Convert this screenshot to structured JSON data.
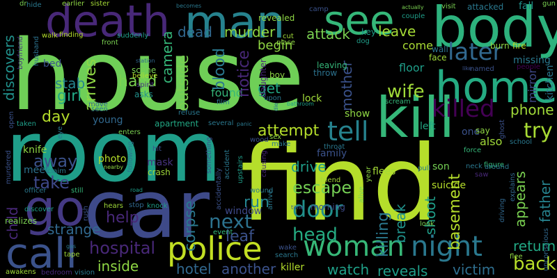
{
  "wordcloud": {
    "background": "#000000",
    "words": [
      {
        "text": "house",
        "color": "#6fcf57"
      },
      {
        "text": "find",
        "color": "#b5de2b"
      },
      {
        "text": "room",
        "color": "#1f9e89"
      },
      {
        "text": "car",
        "color": "#3e4a89"
      },
      {
        "text": "kill",
        "color": "#35b779"
      },
      {
        "text": "body",
        "color": "#2db27d"
      },
      {
        "text": "death",
        "color": "#482878"
      },
      {
        "text": "man",
        "color": "#26828e"
      },
      {
        "text": "see",
        "color": "#35b779"
      },
      {
        "text": "home",
        "color": "#25ab82"
      },
      {
        "text": "go",
        "color": "#443983"
      },
      {
        "text": "call",
        "color": "#3b528b"
      },
      {
        "text": "police",
        "color": "#c2df23"
      },
      {
        "text": "woman",
        "color": "#37b878"
      },
      {
        "text": "night",
        "color": "#2a788e"
      },
      {
        "text": "tell",
        "color": "#26828e"
      },
      {
        "text": "killed",
        "color": "#440154"
      },
      {
        "text": "later",
        "color": "#31688e"
      },
      {
        "text": "door",
        "color": "#21918c"
      },
      {
        "text": "next",
        "color": "#2c728e"
      },
      {
        "text": "phone",
        "color": "#a0da39"
      },
      {
        "text": "try",
        "color": "#a8db34"
      },
      {
        "text": "attempt",
        "color": "#b5de2b"
      },
      {
        "text": "hospital",
        "color": "#482878"
      },
      {
        "text": "escape",
        "color": "#75d054"
      },
      {
        "text": "drive",
        "color": "#1f9e89"
      },
      {
        "text": "back",
        "color": "#b8de29"
      },
      {
        "text": "return",
        "color": "#22a884"
      },
      {
        "text": "head",
        "color": "#25ab82"
      },
      {
        "text": "hand",
        "color": "#7ad151"
      },
      {
        "text": "wife",
        "color": "#a0da39"
      },
      {
        "text": "attack",
        "color": "#7ad151"
      },
      {
        "text": "leave",
        "color": "#a5db36"
      },
      {
        "text": "dead",
        "color": "#31688e"
      },
      {
        "text": "murder",
        "color": "#8fd744"
      },
      {
        "text": "begin",
        "color": "#90d743"
      },
      {
        "text": "girl",
        "color": "#22a884"
      },
      {
        "text": "stab",
        "color": "#25848e"
      },
      {
        "text": "day",
        "color": "#b5de2b"
      },
      {
        "text": "away",
        "color": "#3b528b"
      },
      {
        "text": "take",
        "color": "#3e4989"
      },
      {
        "text": "help",
        "color": "#482878"
      },
      {
        "text": "leaf",
        "color": "#3b528b"
      },
      {
        "text": "run",
        "color": "#25848e"
      },
      {
        "text": "get",
        "color": "#22a884"
      },
      {
        "text": "found",
        "color": "#35b779"
      },
      {
        "text": "hotel",
        "color": "#31688e"
      },
      {
        "text": "another",
        "color": "#3b528b"
      },
      {
        "text": "inside",
        "color": "#8fd744"
      },
      {
        "text": "watch",
        "color": "#1fa088"
      },
      {
        "text": "reveals",
        "color": "#1f9e89"
      },
      {
        "text": "victim",
        "color": "#2e6e8e"
      },
      {
        "text": "strange",
        "color": "#31688e"
      },
      {
        "text": "killing",
        "color": "#2a788e"
      },
      {
        "text": "shoot",
        "color": "#1f9e89"
      },
      {
        "text": "break",
        "color": "#20928c"
      },
      {
        "text": "basement",
        "color": "#b5de2b"
      },
      {
        "text": "appears",
        "color": "#7ad151"
      },
      {
        "text": "father",
        "color": "#26828e"
      },
      {
        "text": "mother",
        "color": "#3b528b"
      },
      {
        "text": "blood",
        "color": "#2a788e"
      },
      {
        "text": "notice",
        "color": "#482878"
      },
      {
        "text": "outside",
        "color": "#7ad151"
      },
      {
        "text": "camera",
        "color": "#35b779"
      },
      {
        "text": "discovers",
        "color": "#21918c"
      },
      {
        "text": "child",
        "color": "#482878"
      },
      {
        "text": "corpse",
        "color": "#2a788e"
      },
      {
        "text": "arrives",
        "color": "#8fd744"
      },
      {
        "text": "floor",
        "color": "#1f9e89"
      },
      {
        "text": "come",
        "color": "#a8db34"
      },
      {
        "text": "mirror",
        "color": "#3e4989"
      },
      {
        "text": "window",
        "color": "#3e4989"
      },
      {
        "text": "missing",
        "color": "#2a788e"
      },
      {
        "text": "kitchen",
        "color": "#2a788e"
      },
      {
        "text": "lock",
        "color": "#a0da39"
      },
      {
        "text": "son",
        "color": "#75d054"
      },
      {
        "text": "also",
        "color": "#a0da39"
      },
      {
        "text": "one",
        "color": "#3b528b"
      },
      {
        "text": "left",
        "color": "#22a884"
      },
      {
        "text": "show",
        "color": "#8fd744"
      },
      {
        "text": "family",
        "color": "#3b528b"
      },
      {
        "text": "flees",
        "color": "#a5db36"
      },
      {
        "text": "suicide",
        "color": "#b5de2b"
      },
      {
        "text": "killer",
        "color": "#b5de2b"
      },
      {
        "text": "morning",
        "color": "#3e4a89"
      },
      {
        "text": "photo",
        "color": "#b5de2b"
      },
      {
        "text": "mask",
        "color": "#46337e"
      },
      {
        "text": "crash",
        "color": "#a0da39"
      },
      {
        "text": "knife",
        "color": "#8fd744"
      },
      {
        "text": "meet",
        "color": "#2c728e"
      },
      {
        "text": "young",
        "color": "#31688e"
      },
      {
        "text": "apartment",
        "color": "#22a884"
      },
      {
        "text": "scene",
        "color": "#7ad151"
      },
      {
        "text": "asks",
        "color": "#21918c"
      },
      {
        "text": "leaving",
        "color": "#35b779"
      },
      {
        "text": "throw",
        "color": "#2c728e"
      },
      {
        "text": "wall",
        "color": "#2c728e"
      },
      {
        "text": "face",
        "color": "#a0da39"
      },
      {
        "text": "burn",
        "color": "#8fd744"
      },
      {
        "text": "fire",
        "color": "#b5de2b"
      },
      {
        "text": "visit",
        "color": "#7ad151"
      },
      {
        "text": "attacked",
        "color": "#2a788e"
      },
      {
        "text": "fall",
        "color": "#21918c"
      },
      {
        "text": "gun",
        "color": "#7ad151"
      },
      {
        "text": "key",
        "color": "#1f9e89"
      },
      {
        "text": "cut",
        "color": "#a0da39"
      },
      {
        "text": "place",
        "color": "#8fd744"
      },
      {
        "text": "dog",
        "color": "#1f9e89"
      },
      {
        "text": "revealed",
        "color": "#8fd744"
      },
      {
        "text": "camp",
        "color": "#3b528b"
      },
      {
        "text": "couple",
        "color": "#1f9e89"
      },
      {
        "text": "actually",
        "color": "#7ad151"
      },
      {
        "text": "dr",
        "color": "#7ad151"
      },
      {
        "text": "hide",
        "color": "#2a788e"
      },
      {
        "text": "earlier",
        "color": "#8fd744"
      },
      {
        "text": "sister",
        "color": "#a5db36"
      },
      {
        "text": "becomes",
        "color": "#2a788e"
      },
      {
        "text": "walk",
        "color": "#b5de2b"
      },
      {
        "text": "finding",
        "color": "#b5de2b"
      },
      {
        "text": "suddenly",
        "color": "#1f9e89"
      },
      {
        "text": "front",
        "color": "#7ad151"
      },
      {
        "text": "station",
        "color": "#31688e"
      },
      {
        "text": "believe",
        "color": "#b5de2b"
      },
      {
        "text": "spirit",
        "color": "#46337e"
      },
      {
        "text": "boyfriend",
        "color": "#46337e"
      },
      {
        "text": "husband",
        "color": "#2c728e"
      },
      {
        "text": "eye",
        "color": "#2a788e"
      },
      {
        "text": "daughter",
        "color": "#482878"
      },
      {
        "text": "boy",
        "color": "#8fd744"
      },
      {
        "text": "upon",
        "color": "#2a788e"
      },
      {
        "text": "film",
        "color": "#2a788e"
      },
      {
        "text": "bathroom",
        "color": "#1f9e89"
      },
      {
        "text": "scream",
        "color": "#35b779"
      },
      {
        "text": "bed",
        "color": "#3b528b"
      },
      {
        "text": "like",
        "color": "#3b528b"
      },
      {
        "text": "named",
        "color": "#3b528b"
      },
      {
        "text": "people",
        "color": "#440154"
      },
      {
        "text": "ghost",
        "color": "#3b528b"
      },
      {
        "text": "say",
        "color": "#8fd744"
      },
      {
        "text": "school",
        "color": "#2a788e"
      },
      {
        "text": "force",
        "color": "#35b779"
      },
      {
        "text": "neck",
        "color": "#2a788e"
      },
      {
        "text": "figure",
        "color": "#35b779"
      },
      {
        "text": "around",
        "color": "#2a788e"
      },
      {
        "text": "saw",
        "color": "#482878"
      },
      {
        "text": "explains",
        "color": "#31688e"
      },
      {
        "text": "unconscious",
        "color": "#31688e"
      },
      {
        "text": "driving",
        "color": "#31688e"
      },
      {
        "text": "flee",
        "color": "#8fd744"
      },
      {
        "text": "pull",
        "color": "#2a788e"
      },
      {
        "text": "look",
        "color": "#7ad151"
      },
      {
        "text": "alive",
        "color": "#7ad151"
      },
      {
        "text": "year",
        "color": "#8fd744"
      },
      {
        "text": "throat",
        "color": "#2a788e"
      },
      {
        "text": "friend",
        "color": "#a5db36"
      },
      {
        "text": "causing",
        "color": "#482878"
      },
      {
        "text": "wood",
        "color": "#3b528b"
      },
      {
        "text": "sex",
        "color": "#8fd744"
      },
      {
        "text": "make",
        "color": "#2a788e"
      },
      {
        "text": "panic",
        "color": "#2a788e"
      },
      {
        "text": "several",
        "color": "#2a788e"
      },
      {
        "text": "arrive",
        "color": "#2a788e"
      },
      {
        "text": "time",
        "color": "#3b528b"
      },
      {
        "text": "event",
        "color": "#35b779"
      },
      {
        "text": "wound",
        "color": "#2a788e"
      },
      {
        "text": "accident",
        "color": "#2a788e"
      },
      {
        "text": "accidentally",
        "color": "#3b528b"
      },
      {
        "text": "upstairs",
        "color": "#1f9e89"
      },
      {
        "text": "something",
        "color": "#3b528b"
      },
      {
        "text": "refuse",
        "color": "#2a788e"
      },
      {
        "text": "enters",
        "color": "#7ad151"
      },
      {
        "text": "seen",
        "color": "#2a788e"
      },
      {
        "text": "move",
        "color": "#31688e"
      },
      {
        "text": "taken",
        "color": "#1f9e89"
      },
      {
        "text": "open",
        "color": "#3b528b"
      },
      {
        "text": "murdered",
        "color": "#3b528b"
      },
      {
        "text": "claim",
        "color": "#2a788e"
      },
      {
        "text": "nearby",
        "color": "#8fd744"
      },
      {
        "text": "following",
        "color": "#2a788e"
      },
      {
        "text": "hit",
        "color": "#3b528b"
      },
      {
        "text": "road",
        "color": "#1f9e89"
      },
      {
        "text": "hears",
        "color": "#a0da39"
      },
      {
        "text": "stop",
        "color": "#31688e"
      },
      {
        "text": "knock",
        "color": "#1f9e89"
      },
      {
        "text": "rush",
        "color": "#3b528b"
      },
      {
        "text": "still",
        "color": "#35b779"
      },
      {
        "text": "officer",
        "color": "#2a788e"
      },
      {
        "text": "discover",
        "color": "#1f9e89"
      },
      {
        "text": "realizes",
        "color": "#7ad151"
      },
      {
        "text": "gas",
        "color": "#2a788e"
      },
      {
        "text": "tape",
        "color": "#a0da39"
      },
      {
        "text": "awakens",
        "color": "#a0da39"
      },
      {
        "text": "bedroom",
        "color": "#482878"
      },
      {
        "text": "vision",
        "color": "#2a788e"
      },
      {
        "text": "wake",
        "color": "#3b528b"
      },
      {
        "text": "search",
        "color": "#2a788e"
      },
      {
        "text": "die",
        "color": "#2a788e"
      }
    ]
  }
}
